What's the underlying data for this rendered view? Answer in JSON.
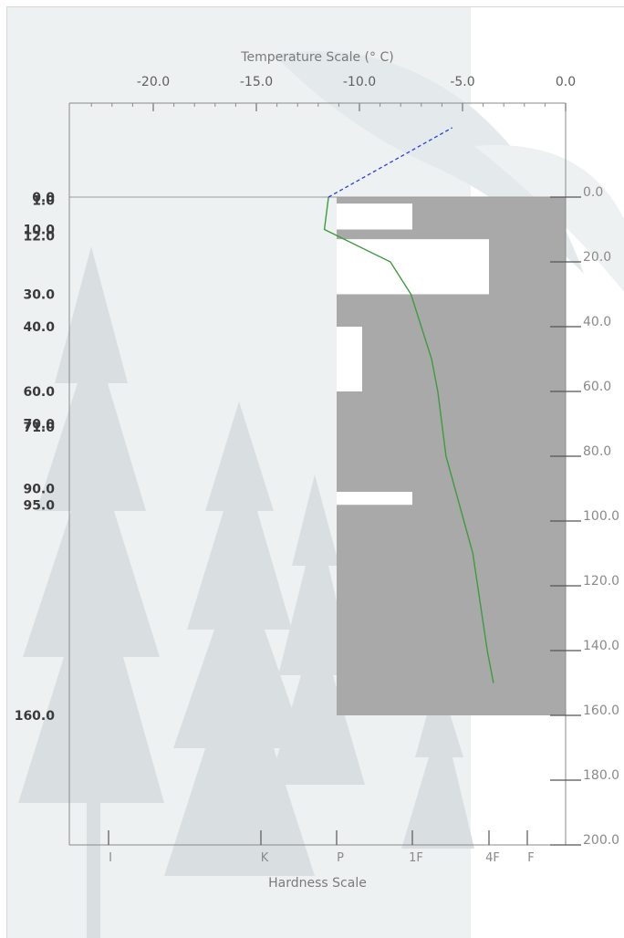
{
  "chart_data": {
    "type": "line",
    "title": "",
    "top_axis": {
      "label": "Temperature Scale (° C)",
      "ticks": [
        "-20.0",
        "-15.0",
        "-10.0",
        "-5.0",
        "0.0"
      ],
      "tick_values": [
        -20,
        -15,
        -10,
        -5,
        0
      ],
      "range": [
        -24,
        0
      ]
    },
    "bottom_axis": {
      "label": "Hardness Scale",
      "ticks": [
        "I",
        "K",
        "P",
        "1F",
        "4F",
        "F"
      ]
    },
    "right_axis": {
      "label": "",
      "ticks": [
        "0.0",
        "20.0",
        "40.0",
        "60.0",
        "80.0",
        "100.0",
        "120.0",
        "140.0",
        "160.0",
        "180.0",
        "200.0"
      ],
      "tick_values": [
        0,
        20,
        40,
        60,
        80,
        100,
        120,
        140,
        160,
        180,
        200
      ],
      "range": [
        0,
        200
      ]
    },
    "layer_labels": [
      "0.0",
      "1.0",
      "10.0",
      "12.0",
      "30.0",
      "40.0",
      "60.0",
      "70.0",
      "71.0",
      "90.0",
      "95.0",
      "160.0"
    ],
    "hardness_layers": [
      {
        "top": 0,
        "bottom": 160,
        "hardness": "4F+"
      }
    ],
    "white_cutouts": [
      {
        "top": 2,
        "bottom": 10,
        "from": "P",
        "to": "1F"
      },
      {
        "top": 13,
        "bottom": 30,
        "from": "P",
        "to": "4F"
      },
      {
        "top": 40,
        "bottom": 60,
        "from": "P",
        "to": "P+"
      },
      {
        "top": 91,
        "bottom": 95,
        "from": "P",
        "to": "1F"
      }
    ],
    "series": [
      {
        "values": [
          [
            -11.5,
            0
          ],
          [
            -11.7,
            10
          ],
          [
            -8.5,
            20
          ],
          [
            -7.5,
            30
          ],
          [
            -6.5,
            50
          ],
          [
            -6.2,
            60
          ],
          [
            -5.8,
            80
          ],
          [
            -4.5,
            110
          ],
          [
            -3.8,
            140
          ],
          [
            -3.5,
            150
          ]
        ]
      }
    ],
    "air_temperature_projection": [
      [
        -11.5,
        0
      ],
      [
        -5.5,
        -21
      ]
    ],
    "grid": false,
    "legend": "none"
  },
  "colors": {
    "layer_fill": "#a9a9a9",
    "profile_line": "#3e9b3e",
    "air_line": "#2a3fdd",
    "axis": "#8a8a8a",
    "background_tint": "#e3e8ea"
  }
}
